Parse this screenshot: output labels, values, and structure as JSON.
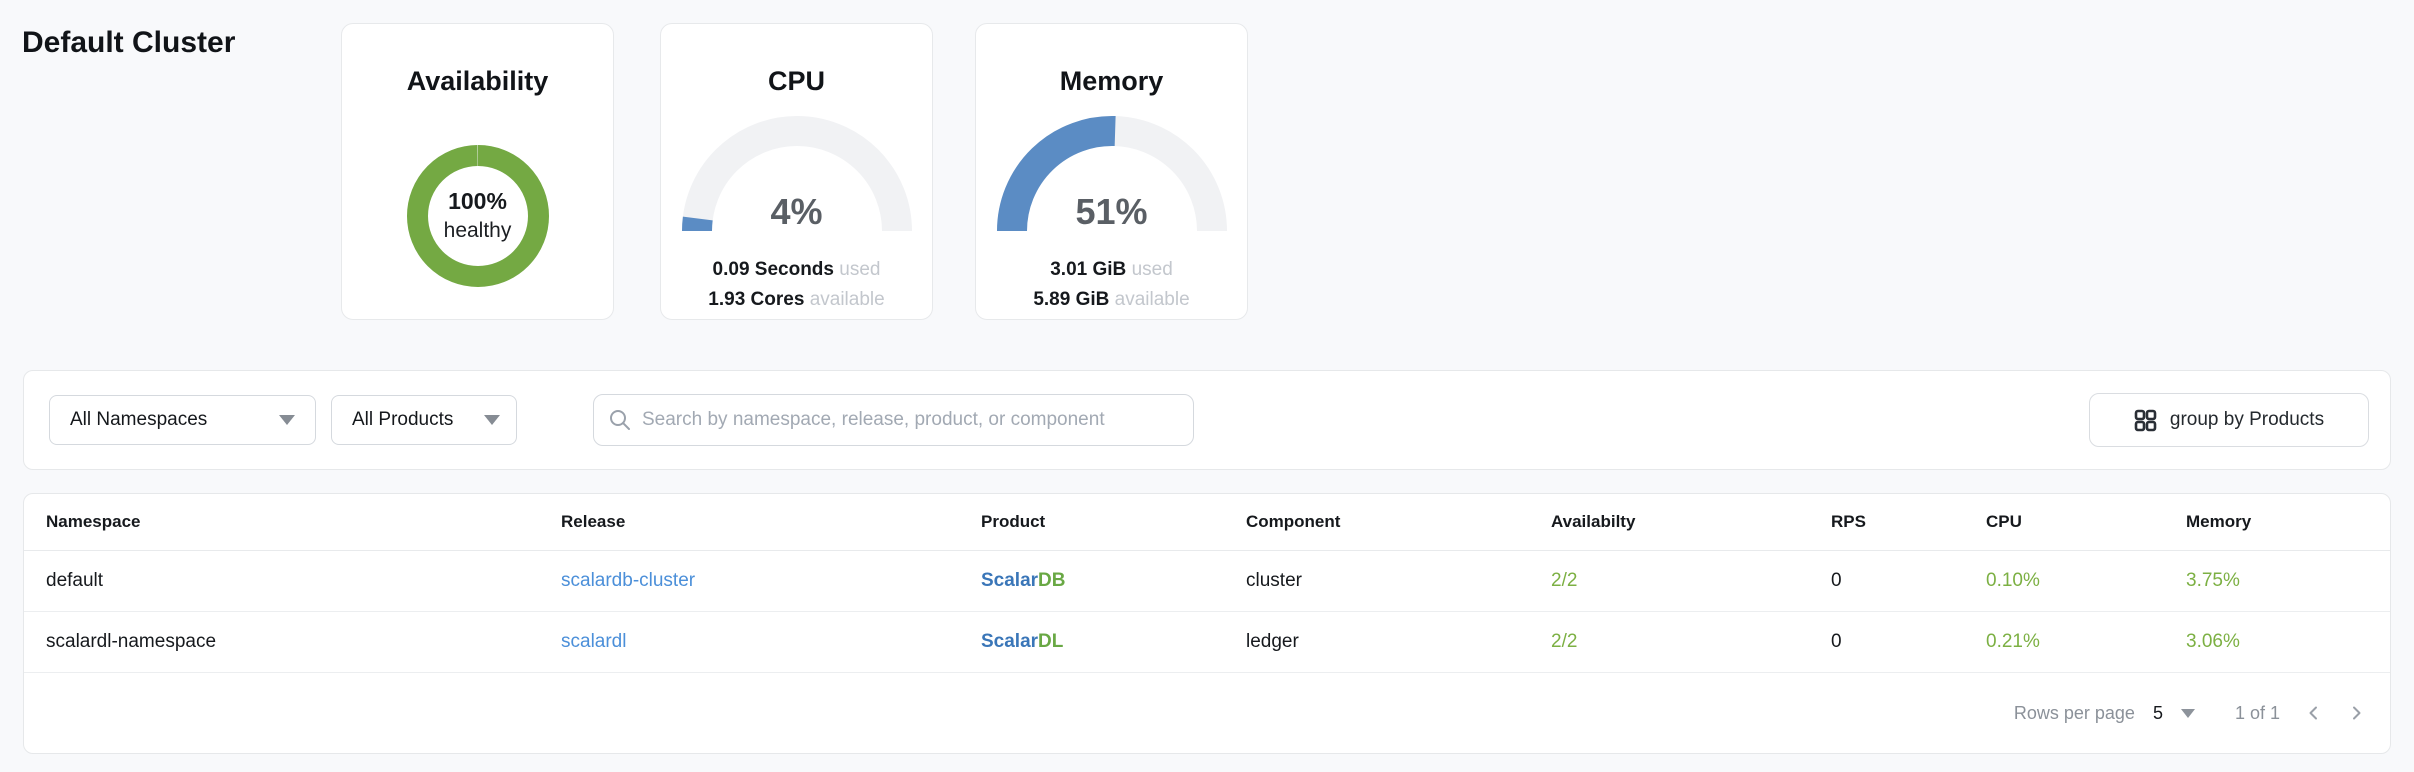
{
  "page": {
    "title": "Default Cluster"
  },
  "cards": {
    "availability": {
      "title": "Availability",
      "percent": 100,
      "value": "100%",
      "label": "healthy",
      "color": "#74a943"
    },
    "cpu": {
      "title": "CPU",
      "percent": 4,
      "percent_label": "4%",
      "used_value": "0.09 Seconds",
      "used_label": "used",
      "available_value": "1.93 Cores",
      "available_label": "available",
      "color": "#5b8cc4",
      "track_color": "#f1f2f4"
    },
    "memory": {
      "title": "Memory",
      "percent": 51,
      "percent_label": "51%",
      "used_value": "3.01 GiB",
      "used_label": "used",
      "available_value": "5.89 GiB",
      "available_label": "available",
      "color": "#5b8cc4",
      "track_color": "#f1f2f4"
    }
  },
  "chart_data": [
    {
      "type": "pie",
      "title": "Availability",
      "values": [
        100
      ],
      "labels": [
        "healthy"
      ],
      "unit": "%"
    },
    {
      "type": "area",
      "title": "CPU gauge",
      "values": [
        4
      ],
      "range": [
        0,
        100
      ],
      "unit": "%"
    },
    {
      "type": "area",
      "title": "Memory gauge",
      "values": [
        51
      ],
      "range": [
        0,
        100
      ],
      "unit": "%"
    }
  ],
  "filters": {
    "namespace_dropdown": "All Namespaces",
    "product_dropdown": "All Products",
    "search_placeholder": "Search by namespace, release, product, or component",
    "group_button": "group by Products"
  },
  "table": {
    "columns": [
      "Namespace",
      "Release",
      "Product",
      "Component",
      "Availabilty",
      "RPS",
      "CPU",
      "Memory"
    ],
    "rows": [
      {
        "namespace": "default",
        "release": "scalardb-cluster",
        "product_prefix": "Scalar",
        "product_suffix": "DB",
        "component": "cluster",
        "availability": "2/2",
        "rps": "0",
        "cpu": "0.10%",
        "memory": "3.75%"
      },
      {
        "namespace": "scalardl-namespace",
        "release": "scalardl",
        "product_prefix": "Scalar",
        "product_suffix": "DL",
        "component": "ledger",
        "availability": "2/2",
        "rps": "0",
        "cpu": "0.21%",
        "memory": "3.06%"
      }
    ],
    "pagination": {
      "rows_per_page_label": "Rows per page",
      "rows_per_page_value": "5",
      "page_info": "1 of 1"
    }
  },
  "colors": {
    "healthy_green": "#74a943",
    "gauge_blue": "#5b8cc4",
    "link_blue": "#4b8fd9",
    "brand_blue": "#3a76b8",
    "brand_green": "#69a844",
    "value_green": "#7cb043"
  }
}
